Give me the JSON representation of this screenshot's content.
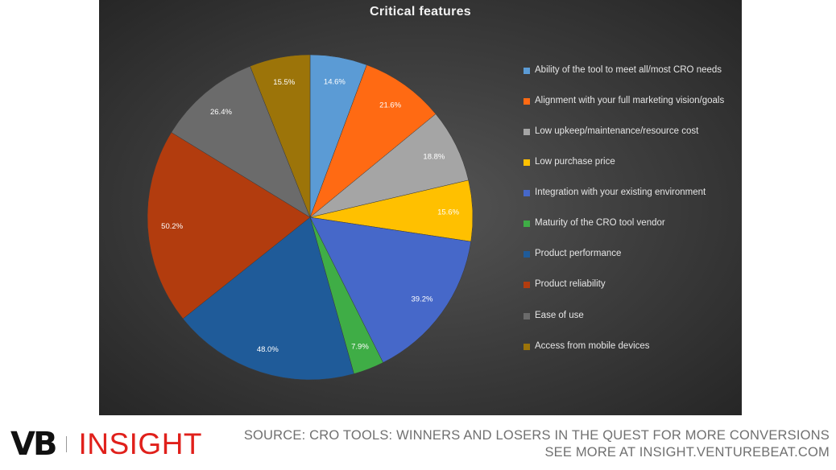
{
  "chart_data": {
    "type": "pie",
    "title": "Critical features",
    "legend_position": "right",
    "slices": [
      {
        "label": "Ability of the tool to meet all/most CRO needs",
        "value": 14.6,
        "display": "14.6%",
        "color": "#5b9bd5"
      },
      {
        "label": "Alignment with your full marketing vision/goals",
        "value": 21.6,
        "display": "21.6%",
        "color": "#ff6a13"
      },
      {
        "label": "Low upkeep/maintenance/resource cost",
        "value": 18.8,
        "display": "18.8%",
        "color": "#a5a5a5"
      },
      {
        "label": "Low purchase price",
        "value": 15.6,
        "display": "15.6%",
        "color": "#ffc000"
      },
      {
        "label": "Integration with your existing environment",
        "value": 39.2,
        "display": "39.2%",
        "color": "#4668c9"
      },
      {
        "label": "Maturity of the CRO tool vendor",
        "value": 7.9,
        "display": "7.9%",
        "color": "#3fad46"
      },
      {
        "label": "Product performance",
        "value": 48.0,
        "display": "48.0%",
        "color": "#1f5b99"
      },
      {
        "label": "Product reliability",
        "value": 50.2,
        "display": "50.2%",
        "color": "#b23c0e"
      },
      {
        "label": "Ease of use",
        "value": 26.4,
        "display": "26.4%",
        "color": "#6b6b6b"
      },
      {
        "label": "Access from mobile devices",
        "value": 15.5,
        "display": "15.5%",
        "color": "#9c7409"
      }
    ]
  },
  "branding": {
    "vb": "VB",
    "insight": "INSIGHT"
  },
  "footer": {
    "source_line": "SOURCE: CRO TOOLS: WINNERS AND LOSERS IN THE QUEST FOR MORE CONVERSIONS",
    "more_line": "SEE MORE AT INSIGHT.VENTUREBEAT.COM"
  }
}
